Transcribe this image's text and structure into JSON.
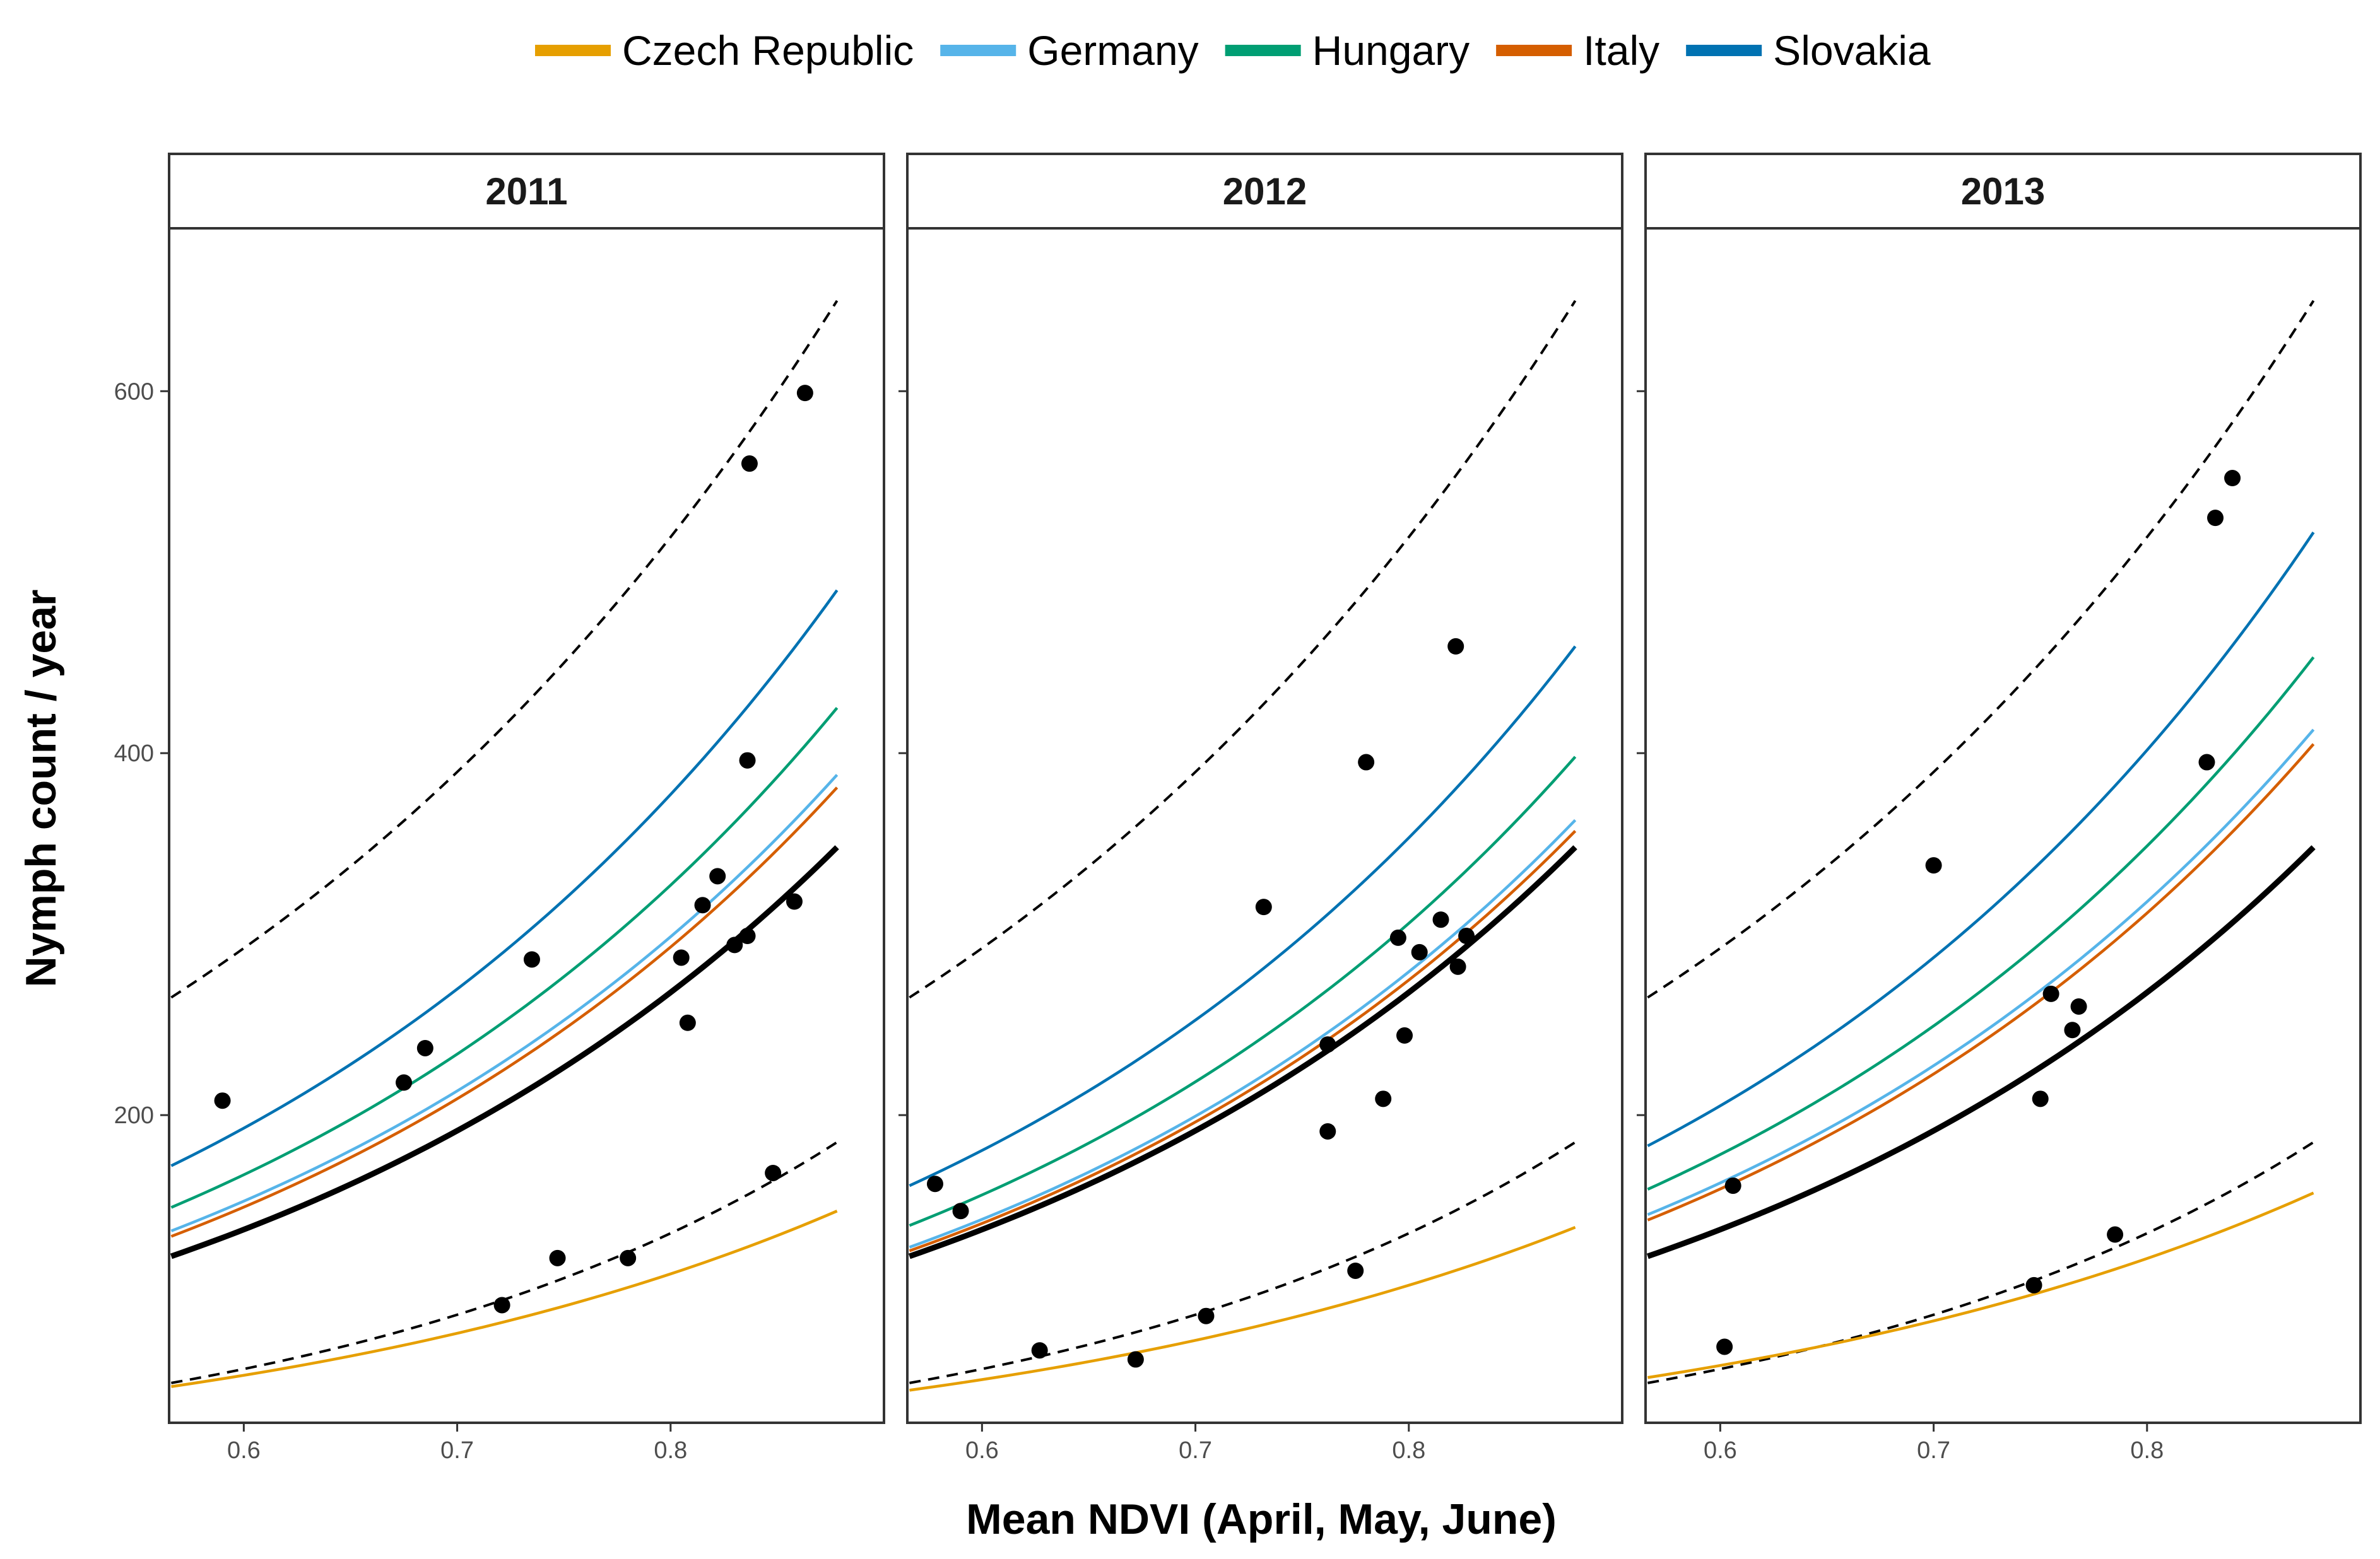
{
  "chart_data": {
    "type": "line",
    "xlabel": "Mean NDVI (April, May, June)",
    "ylabel": "Nymph count / year",
    "xlim": [
      0.565,
      0.9
    ],
    "ylim": [
      30,
      690
    ],
    "x_ticks": [
      0.6,
      0.7,
      0.8
    ],
    "x_tick_labels": [
      "0.6",
      "0.7",
      "0.8"
    ],
    "y_ticks": [
      200,
      400,
      600
    ],
    "y_tick_labels": [
      "200",
      "400",
      "600"
    ],
    "legend": {
      "position": "top",
      "entries": [
        {
          "name": "Czech Republic",
          "color": "#E69F00"
        },
        {
          "name": "Germany",
          "color": "#56B4E9"
        },
        {
          "name": "Hungary",
          "color": "#009E73"
        },
        {
          "name": "Italy",
          "color": "#D55E00"
        },
        {
          "name": "Slovakia",
          "color": "#0072B2"
        }
      ]
    },
    "panels": [
      {
        "label": "2011",
        "x_range": [
          0.566,
          0.878
        ],
        "mean_line": {
          "color": "#000000",
          "x": [
            0.566,
            0.878
          ],
          "y": [
            122,
            348
          ]
        },
        "interval_upper": {
          "x": [
            0.566,
            0.878
          ],
          "y": [
            265,
            650
          ]
        },
        "interval_lower": {
          "x": [
            0.566,
            0.878
          ],
          "y": [
            52,
            185
          ]
        },
        "series": [
          {
            "name": "Czech Republic",
            "color": "#E69F00",
            "y": [
              50,
              147
            ]
          },
          {
            "name": "Germany",
            "color": "#56B4E9",
            "y": [
              136,
              388
            ]
          },
          {
            "name": "Hungary",
            "color": "#009E73",
            "y": [
              149,
              425
            ]
          },
          {
            "name": "Italy",
            "color": "#D55E00",
            "y": [
              133,
              381
            ]
          },
          {
            "name": "Slovakia",
            "color": "#0072B2",
            "y": [
              172,
              490
            ]
          }
        ],
        "points": [
          [
            0.59,
            208
          ],
          [
            0.675,
            218
          ],
          [
            0.685,
            237
          ],
          [
            0.721,
            95
          ],
          [
            0.735,
            286
          ],
          [
            0.747,
            121
          ],
          [
            0.78,
            121
          ],
          [
            0.805,
            287
          ],
          [
            0.808,
            251
          ],
          [
            0.815,
            316
          ],
          [
            0.822,
            332
          ],
          [
            0.83,
            294
          ],
          [
            0.836,
            396
          ],
          [
            0.836,
            299
          ],
          [
            0.837,
            560
          ],
          [
            0.848,
            168
          ],
          [
            0.858,
            318
          ],
          [
            0.863,
            599
          ]
        ]
      },
      {
        "label": "2012",
        "x_range": [
          0.566,
          0.878
        ],
        "mean_line": {
          "color": "#000000",
          "x": [
            0.566,
            0.878
          ],
          "y": [
            122,
            348
          ]
        },
        "interval_upper": {
          "x": [
            0.566,
            0.878
          ],
          "y": [
            265,
            650
          ]
        },
        "interval_lower": {
          "x": [
            0.566,
            0.878
          ],
          "y": [
            52,
            185
          ]
        },
        "series": [
          {
            "name": "Czech Republic",
            "color": "#E69F00",
            "y": [
              48,
              138
            ]
          },
          {
            "name": "Germany",
            "color": "#56B4E9",
            "y": [
              127,
              363
            ]
          },
          {
            "name": "Hungary",
            "color": "#009E73",
            "y": [
              139,
              398
            ]
          },
          {
            "name": "Italy",
            "color": "#D55E00",
            "y": [
              125,
              357
            ]
          },
          {
            "name": "Slovakia",
            "color": "#0072B2",
            "y": [
              161,
              459
            ]
          }
        ],
        "points": [
          [
            0.578,
            162
          ],
          [
            0.59,
            147
          ],
          [
            0.627,
            70
          ],
          [
            0.672,
            65
          ],
          [
            0.705,
            89
          ],
          [
            0.732,
            315
          ],
          [
            0.762,
            191
          ],
          [
            0.762,
            239
          ],
          [
            0.775,
            114
          ],
          [
            0.78,
            395
          ],
          [
            0.788,
            209
          ],
          [
            0.795,
            298
          ],
          [
            0.798,
            244
          ],
          [
            0.805,
            290
          ],
          [
            0.815,
            308
          ],
          [
            0.822,
            459
          ],
          [
            0.823,
            282
          ],
          [
            0.827,
            299
          ]
        ]
      },
      {
        "label": "2013",
        "x_range": [
          0.566,
          0.878
        ],
        "mean_line": {
          "color": "#000000",
          "x": [
            0.566,
            0.878
          ],
          "y": [
            122,
            348
          ]
        },
        "interval_upper": {
          "x": [
            0.566,
            0.878
          ],
          "y": [
            265,
            650
          ]
        },
        "interval_lower": {
          "x": [
            0.566,
            0.878
          ],
          "y": [
            52,
            185
          ]
        },
        "series": [
          {
            "name": "Czech Republic",
            "color": "#E69F00",
            "y": [
              55,
              157
            ]
          },
          {
            "name": "Germany",
            "color": "#56B4E9",
            "y": [
              145,
              413
            ]
          },
          {
            "name": "Hungary",
            "color": "#009E73",
            "y": [
              159,
              453
            ]
          },
          {
            "name": "Italy",
            "color": "#D55E00",
            "y": [
              142,
              405
            ]
          },
          {
            "name": "Slovakia",
            "color": "#0072B2",
            "y": [
              183,
              522
            ]
          }
        ],
        "points": [
          [
            0.602,
            72
          ],
          [
            0.606,
            161
          ],
          [
            0.7,
            338
          ],
          [
            0.747,
            106
          ],
          [
            0.75,
            209
          ],
          [
            0.755,
            267
          ],
          [
            0.765,
            247
          ],
          [
            0.768,
            260
          ],
          [
            0.785,
            134
          ],
          [
            0.828,
            395
          ],
          [
            0.832,
            530
          ],
          [
            0.84,
            552
          ]
        ]
      }
    ]
  }
}
